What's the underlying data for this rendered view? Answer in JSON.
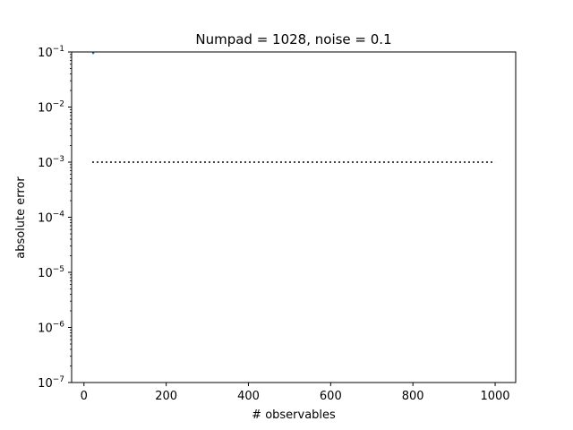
{
  "chart_data": {
    "type": "line",
    "title": "Numpad = 1028, noise = 0.1",
    "xlabel": "# observables",
    "ylabel": "absolute error",
    "xlim": [
      -30,
      1050
    ],
    "ylim_exp": [
      -7,
      -1
    ],
    "yscale": "log",
    "grid": false,
    "x_ticks": [
      0,
      200,
      400,
      600,
      800,
      1000
    ],
    "x_tick_labels": [
      "0",
      "200",
      "400",
      "600",
      "800",
      "1000"
    ],
    "y_ticks": [
      -7,
      -6,
      -5,
      -4,
      -3,
      -2,
      -1
    ],
    "series": [
      {
        "style": "solid",
        "color": "#1f77b4",
        "x": [
          20,
          25
        ],
        "y": [
          0.095,
          0.095
        ]
      },
      {
        "style": "dotted",
        "color": "#000000",
        "x": [
          20,
          1000
        ],
        "y": [
          0.001,
          0.001
        ]
      }
    ]
  }
}
